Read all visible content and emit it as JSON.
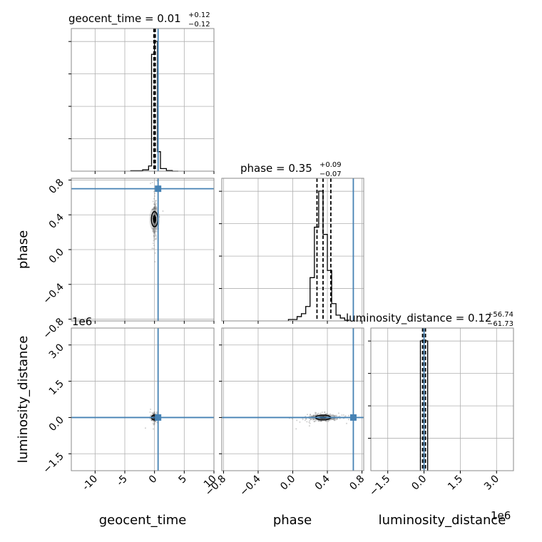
{
  "chart_data": {
    "type": "corner",
    "truth_color": "#4682b4",
    "parameters": [
      {
        "name": "geocent_time",
        "truth": 0.6,
        "range": [
          -14,
          10
        ],
        "ticks": [
          "-10",
          "-5",
          "0",
          "5",
          "10"
        ],
        "tick_values": [
          -10,
          -5,
          0,
          5,
          10
        ],
        "title": {
          "label": "geocent_time = ",
          "median": "0.01",
          "plus": "+0.12",
          "minus": "−0.12"
        },
        "quantiles": [
          -0.11,
          0.01,
          0.13
        ]
      },
      {
        "name": "phase",
        "truth": 0.7,
        "range": [
          -0.82,
          0.82
        ],
        "ticks": [
          "−0.8",
          "−0.4",
          "0.0",
          "0.4",
          "0.8"
        ],
        "tick_values": [
          -0.8,
          -0.4,
          0.0,
          0.4,
          0.8
        ],
        "title": {
          "label": "phase = ",
          "median": "0.35",
          "plus": "+0.09",
          "minus": "−0.07"
        },
        "quantiles": [
          0.28,
          0.35,
          0.44
        ]
      },
      {
        "name": "luminosity_distance",
        "truth": 0.0,
        "range": [
          -2.2,
          3.7
        ],
        "ticks": [
          "−1.5",
          "0.0",
          "1.5",
          "3.0"
        ],
        "tick_values": [
          -1.5,
          0.0,
          1.5,
          3.0
        ],
        "offset": "1e6",
        "title": {
          "label": "luminosity_distance = ",
          "median": "0.12",
          "plus": "+56.74",
          "minus": "−61.73"
        },
        "quantiles": [
          -0.06,
          0.0,
          0.06
        ]
      }
    ],
    "hist_geocent_time": {
      "edges": [
        -4,
        -2,
        -1,
        -0.5,
        0,
        0.5,
        1,
        2,
        3,
        4
      ],
      "counts": [
        0.003,
        0.01,
        0.04,
        0.9,
        1.0,
        0.15,
        0.02,
        0.005,
        0.0
      ]
    },
    "hist_phase": {
      "edges": [
        -0.05,
        0.05,
        0.1,
        0.15,
        0.2,
        0.25,
        0.3,
        0.35,
        0.4,
        0.45,
        0.5,
        0.55,
        0.6,
        0.65
      ],
      "counts": [
        0.01,
        0.03,
        0.05,
        0.1,
        0.3,
        0.65,
        0.9,
        0.6,
        0.35,
        0.12,
        0.04,
        0.02,
        0.005
      ]
    },
    "hist_luminosity_distance": {
      "edges": [
        -0.15,
        0.0,
        0.15
      ],
      "counts": [
        1.0,
        1.0
      ]
    }
  }
}
